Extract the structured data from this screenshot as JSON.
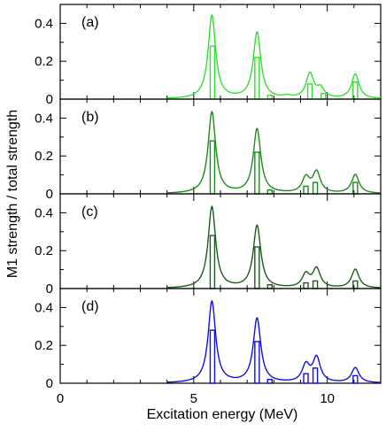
{
  "chart_data": {
    "type": "line",
    "ylabel": "M1 strength / total strength",
    "xlabel": "Excitation energy (MeV)",
    "xlim": [
      0,
      12
    ],
    "ylim": [
      0,
      0.5
    ],
    "x_ticks": [
      "0",
      "5",
      "10"
    ],
    "y_ticks": [
      "0",
      "0.2",
      "0.4"
    ],
    "grid": false,
    "legend": "none",
    "panels": [
      {
        "tag": "(a)",
        "color": "#33dd33",
        "curve_peaks": [
          {
            "x": 5.68,
            "y": 0.44
          },
          {
            "x": 7.37,
            "y": 0.35
          },
          {
            "x": 8.5,
            "y": 0.01
          },
          {
            "x": 9.35,
            "y": 0.13
          },
          {
            "x": 9.75,
            "y": 0.05
          },
          {
            "x": 11.05,
            "y": 0.13
          }
        ],
        "bars": [
          {
            "x": 5.7,
            "y": 0.28
          },
          {
            "x": 7.37,
            "y": 0.22
          },
          {
            "x": 7.85,
            "y": 0.02
          },
          {
            "x": 9.35,
            "y": 0.08
          },
          {
            "x": 9.85,
            "y": 0.03
          },
          {
            "x": 11.05,
            "y": 0.09
          }
        ]
      },
      {
        "tag": "(b)",
        "color": "#1a8c1a",
        "curve_peaks": [
          {
            "x": 5.68,
            "y": 0.43
          },
          {
            "x": 7.37,
            "y": 0.34
          },
          {
            "x": 9.2,
            "y": 0.08
          },
          {
            "x": 9.6,
            "y": 0.11
          },
          {
            "x": 11.05,
            "y": 0.1
          }
        ],
        "bars": [
          {
            "x": 5.7,
            "y": 0.28
          },
          {
            "x": 7.37,
            "y": 0.22
          },
          {
            "x": 7.85,
            "y": 0.02
          },
          {
            "x": 9.2,
            "y": 0.04
          },
          {
            "x": 9.55,
            "y": 0.06
          },
          {
            "x": 11.05,
            "y": 0.06
          }
        ]
      },
      {
        "tag": "(c)",
        "color": "#1a5c1a",
        "curve_peaks": [
          {
            "x": 5.68,
            "y": 0.43
          },
          {
            "x": 7.37,
            "y": 0.33
          },
          {
            "x": 9.2,
            "y": 0.07
          },
          {
            "x": 9.6,
            "y": 0.1
          },
          {
            "x": 11.05,
            "y": 0.1
          }
        ],
        "bars": [
          {
            "x": 5.7,
            "y": 0.28
          },
          {
            "x": 7.37,
            "y": 0.22
          },
          {
            "x": 7.85,
            "y": 0.02
          },
          {
            "x": 9.2,
            "y": 0.03
          },
          {
            "x": 9.55,
            "y": 0.04
          },
          {
            "x": 11.05,
            "y": 0.04
          }
        ]
      },
      {
        "tag": "(d)",
        "color": "#1010dd",
        "curve_peaks": [
          {
            "x": 5.68,
            "y": 0.43
          },
          {
            "x": 7.37,
            "y": 0.34
          },
          {
            "x": 9.2,
            "y": 0.09
          },
          {
            "x": 9.6,
            "y": 0.13
          },
          {
            "x": 11.05,
            "y": 0.08
          }
        ],
        "bars": [
          {
            "x": 5.7,
            "y": 0.28
          },
          {
            "x": 7.37,
            "y": 0.22
          },
          {
            "x": 7.85,
            "y": 0.02
          },
          {
            "x": 9.2,
            "y": 0.05
          },
          {
            "x": 9.55,
            "y": 0.08
          },
          {
            "x": 11.05,
            "y": 0.04
          }
        ]
      }
    ]
  }
}
